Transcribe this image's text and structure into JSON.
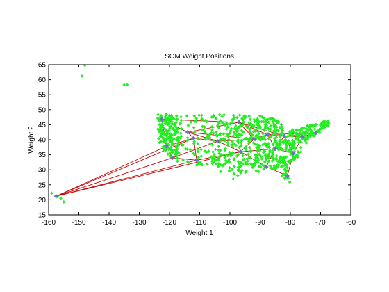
{
  "chart_data": {
    "type": "scatter",
    "title": "SOM Weight Positions",
    "xlabel": "Weight 1",
    "ylabel": "Weight 2",
    "xlim": [
      -160,
      -60
    ],
    "ylim": [
      15,
      65
    ],
    "xticks": [
      -160,
      -150,
      -140,
      -130,
      -120,
      -110,
      -100,
      -90,
      -80,
      -70,
      -60
    ],
    "yticks": [
      15,
      20,
      25,
      30,
      35,
      40,
      45,
      50,
      55,
      60,
      65
    ],
    "grid": false,
    "colors": {
      "data": "#22ee22",
      "neuron": "#7070c0",
      "link": "#cc0000",
      "axes": "#000000"
    },
    "data_points": {
      "outliers": [
        [
          -148,
          64.8
        ],
        [
          -149,
          61.2
        ],
        [
          -135,
          58.3
        ],
        [
          -134,
          58.3
        ],
        [
          -159,
          22.2
        ],
        [
          -157,
          21.0
        ],
        [
          -156,
          20.5
        ],
        [
          -155,
          19.3
        ]
      ],
      "us_region_bounds": {
        "x": [
          -124,
          -67
        ],
        "y": [
          25.5,
          48.5
        ]
      },
      "sample_count": 900
    },
    "neurons": [
      [
        -157.5,
        21.2
      ],
      [
        -122.5,
        46.8
      ],
      [
        -114.0,
        42.5
      ],
      [
        -97.0,
        45.8
      ],
      [
        -92.0,
        40.2
      ],
      [
        -87.5,
        41.7
      ],
      [
        -82.0,
        41.2
      ],
      [
        -76.0,
        41.0
      ],
      [
        -71.5,
        42.3
      ],
      [
        -121.0,
        37.8
      ],
      [
        -112.0,
        40.5
      ],
      [
        -104.0,
        39.5
      ],
      [
        -119.0,
        34.0
      ],
      [
        -111.0,
        33.2
      ],
      [
        -96.5,
        36.0
      ],
      [
        -88.0,
        31.0
      ],
      [
        -85.0,
        37.0
      ],
      [
        -81.0,
        28.0
      ],
      [
        -79.0,
        35.5
      ]
    ],
    "links": [
      [
        0,
        12
      ],
      [
        0,
        13
      ],
      [
        0,
        9
      ],
      [
        0,
        10
      ],
      [
        0,
        14
      ],
      [
        1,
        2
      ],
      [
        1,
        9
      ],
      [
        1,
        3
      ],
      [
        2,
        10
      ],
      [
        2,
        3
      ],
      [
        2,
        4
      ],
      [
        3,
        4
      ],
      [
        3,
        5
      ],
      [
        3,
        6
      ],
      [
        4,
        5
      ],
      [
        4,
        14
      ],
      [
        4,
        11
      ],
      [
        5,
        6
      ],
      [
        5,
        16
      ],
      [
        6,
        7
      ],
      [
        6,
        8
      ],
      [
        6,
        18
      ],
      [
        7,
        8
      ],
      [
        7,
        18
      ],
      [
        8,
        5
      ],
      [
        9,
        12
      ],
      [
        9,
        10
      ],
      [
        10,
        11
      ],
      [
        10,
        13
      ],
      [
        11,
        14
      ],
      [
        11,
        12
      ],
      [
        12,
        13
      ],
      [
        13,
        14
      ],
      [
        14,
        15
      ],
      [
        14,
        16
      ],
      [
        15,
        16
      ],
      [
        15,
        17
      ],
      [
        16,
        18
      ],
      [
        17,
        18
      ],
      [
        16,
        6
      ],
      [
        2,
        11
      ]
    ]
  }
}
